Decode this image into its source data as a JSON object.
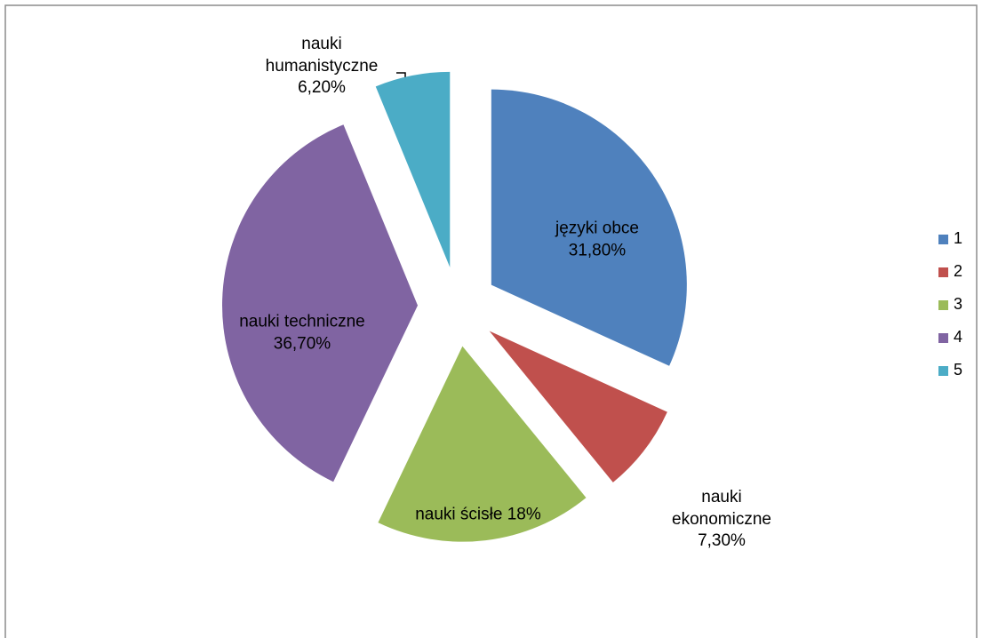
{
  "chart_data": {
    "type": "pie",
    "categories": [
      "1",
      "2",
      "3",
      "4",
      "5"
    ],
    "labels": [
      "języki obce",
      "nauki ekonomiczne",
      "nauki ścisłe",
      "nauki techniczne",
      "nauki humanistyczne"
    ],
    "values": [
      31.8,
      7.3,
      18,
      36.7,
      6.2
    ],
    "value_labels": [
      "31,80%",
      "7,30%",
      "18%",
      "36,70%",
      "6,20%"
    ],
    "colors": [
      "#4f81bd",
      "#c0504d",
      "#9bbb59",
      "#8064a2",
      "#4bacc6"
    ],
    "exploded": true,
    "legend": "right"
  }
}
